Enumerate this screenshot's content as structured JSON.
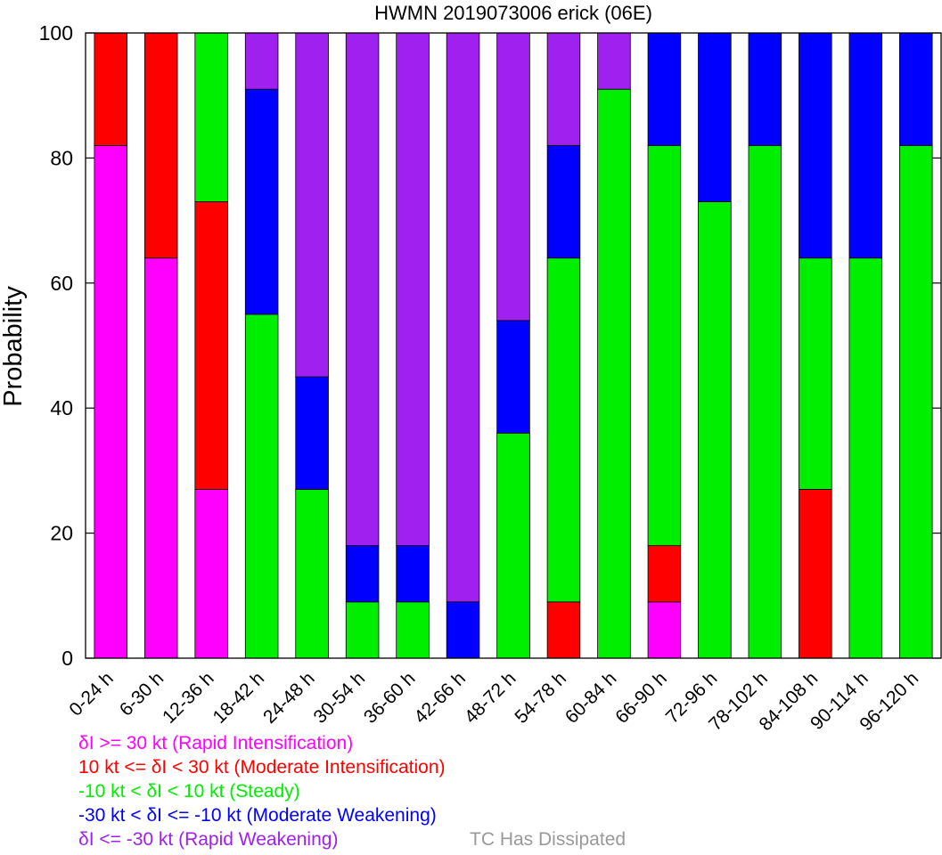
{
  "chart_data": {
    "type": "bar",
    "stacked": true,
    "title": "HWMN 2019073006 erick (06E)",
    "ylabel": "Probability",
    "ylim": [
      0,
      100
    ],
    "yticks": [
      0,
      20,
      40,
      60,
      80,
      100
    ],
    "grid": false,
    "legend_position": "bottom-left",
    "categories": [
      "0-24 h",
      "6-30 h",
      "12-36 h",
      "18-42 h",
      "24-48 h",
      "30-54 h",
      "36-60 h",
      "42-66 h",
      "48-72 h",
      "54-78 h",
      "60-84 h",
      "66-90 h",
      "72-96 h",
      "78-102 h",
      "84-108 h",
      "90-114 h",
      "96-120 h"
    ],
    "series": [
      {
        "name": "δI >= 30 kt (Rapid Intensification)",
        "color": "#ff00ff",
        "values": [
          82,
          64,
          27,
          0,
          0,
          0,
          0,
          0,
          0,
          0,
          0,
          9,
          0,
          0,
          0,
          0,
          0
        ]
      },
      {
        "name": "10 kt <= δI < 30 kt (Moderate Intensification)",
        "color": "#ff0000",
        "values": [
          18,
          36,
          46,
          0,
          0,
          0,
          0,
          0,
          0,
          9,
          0,
          9,
          0,
          0,
          27,
          0,
          0
        ]
      },
      {
        "name": "-10 kt < δI < 10 kt (Steady)",
        "color": "#00ee00",
        "values": [
          0,
          0,
          27,
          55,
          27,
          9,
          9,
          0,
          36,
          55,
          91,
          64,
          73,
          82,
          37,
          64,
          82
        ]
      },
      {
        "name": "-30 kt < δI <= -10 kt (Moderate Weakening)",
        "color": "#0000ff",
        "values": [
          0,
          0,
          0,
          36,
          18,
          9,
          9,
          9,
          18,
          18,
          0,
          18,
          27,
          18,
          36,
          36,
          18
        ]
      },
      {
        "name": "δI <= -30 kt (Rapid Weakening)",
        "color": "#a020f0",
        "values": [
          0,
          0,
          0,
          9,
          55,
          82,
          82,
          91,
          46,
          18,
          9,
          0,
          0,
          0,
          0,
          0,
          0
        ]
      }
    ],
    "extra_legend": {
      "label": "TC Has Dissipated",
      "color": "#999999"
    }
  }
}
